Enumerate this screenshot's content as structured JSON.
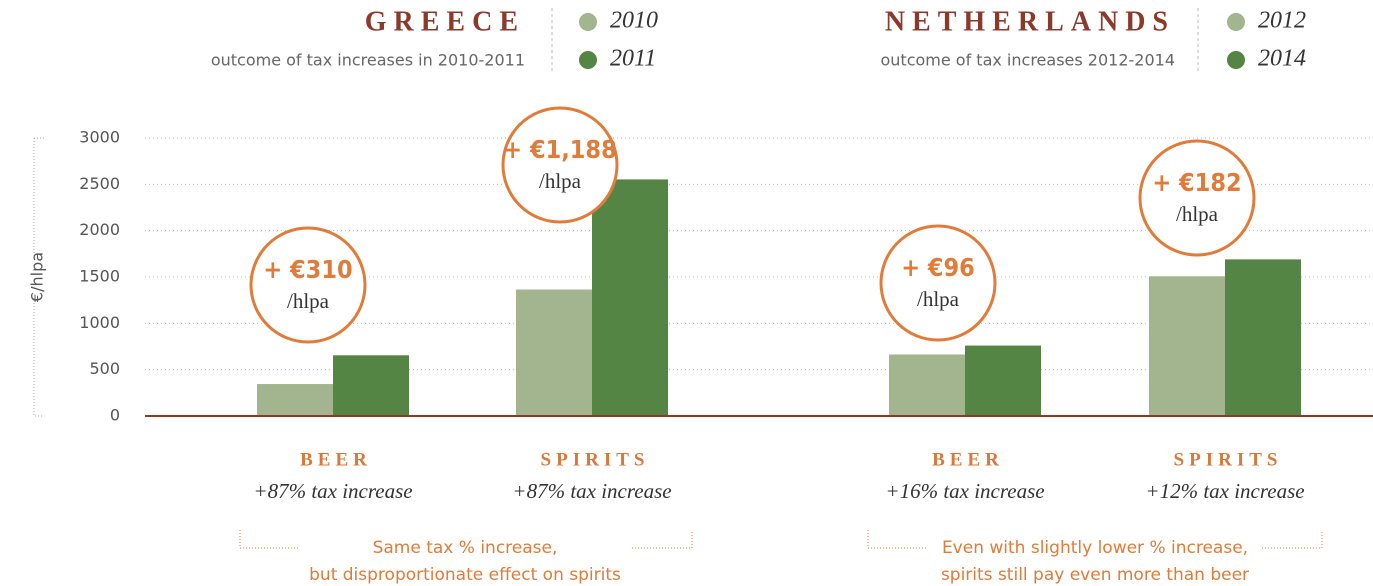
{
  "chart_data": {
    "type": "bar",
    "ylabel": "€/hlpa",
    "ylim": [
      0,
      3000
    ],
    "yticks": [
      0,
      500,
      1000,
      1500,
      2000,
      2500,
      3000
    ],
    "grid": true,
    "panels": [
      {
        "title": "GREECE",
        "subtitle": "outcome of tax increases in 2010-2011",
        "categories": [
          "BEER",
          "SPIRITS"
        ],
        "category_notes": [
          "+87% tax increase",
          "+87% tax increase"
        ],
        "series": [
          {
            "name": "2010",
            "color": "#a3b58f",
            "values": [
              345,
              1365
            ]
          },
          {
            "name": "2011",
            "color": "#548544",
            "values": [
              655,
              2553
            ]
          }
        ],
        "callouts": [
          {
            "label": "+ €310",
            "unit": "/hlpa"
          },
          {
            "label": "+ €1,188",
            "unit": "/hlpa"
          }
        ],
        "note": [
          "Same tax % increase,",
          "but disproportionate effect on spirits"
        ]
      },
      {
        "title": "NETHERLANDS",
        "subtitle": "outcome of tax increases 2012-2014",
        "categories": [
          "BEER",
          "SPIRITS"
        ],
        "category_notes": [
          "+16% tax increase",
          "+12% tax increase"
        ],
        "series": [
          {
            "name": "2012",
            "color": "#a3b58f",
            "values": [
              664,
              1508
            ]
          },
          {
            "name": "2014",
            "color": "#548544",
            "values": [
              760,
              1690
            ]
          }
        ],
        "callouts": [
          {
            "label": "+ €96",
            "unit": "/hlpa"
          },
          {
            "label": "+ €182",
            "unit": "/hlpa"
          }
        ],
        "note": [
          "Even with slightly lower % increase,",
          "spirits still pay even more than beer"
        ]
      }
    ]
  }
}
